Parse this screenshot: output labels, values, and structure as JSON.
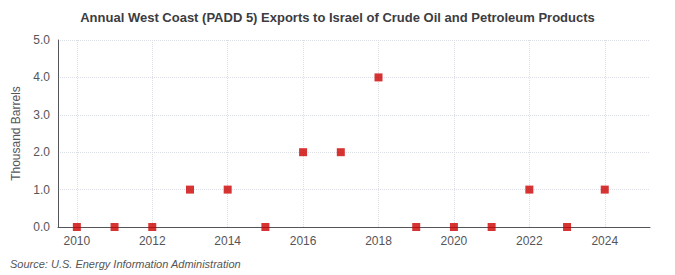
{
  "chart_data": {
    "type": "scatter",
    "title": "Annual West Coast (PADD 5) Exports to Israel of Crude Oil and Petroleum Products",
    "ylabel": "Thousand Barrels",
    "source": "Source: U.S. Energy Information Administration",
    "x": [
      2010,
      2011,
      2012,
      2013,
      2014,
      2015,
      2016,
      2017,
      2018,
      2019,
      2020,
      2021,
      2022,
      2023,
      2024
    ],
    "values": [
      0,
      0,
      0,
      1,
      1,
      0,
      2,
      2,
      4,
      0,
      0,
      0,
      1,
      0,
      1
    ],
    "color": "#cc0000",
    "marker": "square",
    "xlim": [
      2009.5,
      2025.2
    ],
    "xticks": [
      2010,
      2012,
      2014,
      2016,
      2018,
      2020,
      2022,
      2024
    ],
    "ylim": [
      0.0,
      5.0
    ],
    "yticks": [
      {
        "value": 0,
        "label": "0.0"
      },
      {
        "value": 1,
        "label": "1.0"
      },
      {
        "value": 2,
        "label": "2.0"
      },
      {
        "value": 3,
        "label": "3.0"
      },
      {
        "value": 4,
        "label": "4.0"
      },
      {
        "value": 5,
        "label": "5.0"
      }
    ],
    "grid": true
  }
}
